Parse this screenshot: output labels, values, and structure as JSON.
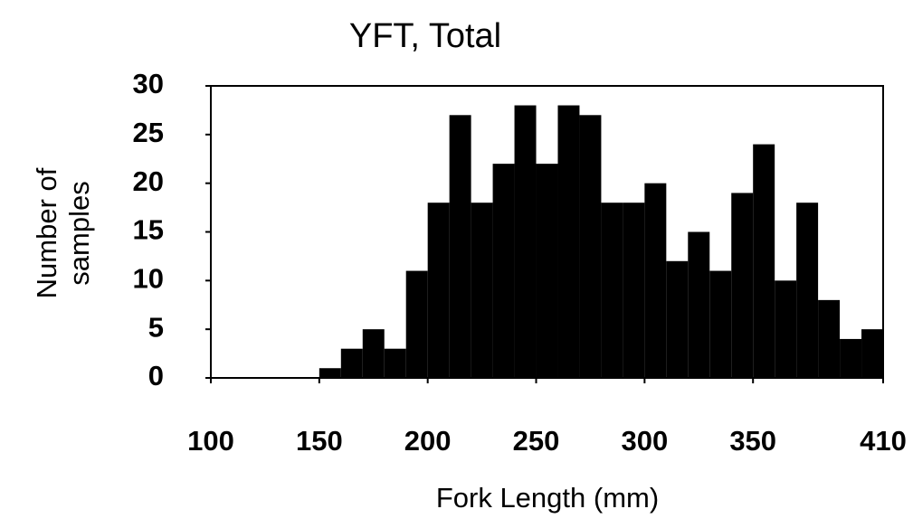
{
  "chart_data": {
    "type": "histogram",
    "title": "YFT, Total",
    "x_label": "Fork Length (mm)",
    "y_label": "Number of samples",
    "bins": [
      100,
      110,
      120,
      130,
      140,
      150,
      160,
      170,
      180,
      190,
      200,
      210,
      220,
      230,
      240,
      250,
      260,
      270,
      280,
      290,
      300,
      310,
      320,
      330,
      340,
      350,
      360,
      370,
      380,
      390,
      400,
      410
    ],
    "values": [
      0,
      0,
      0,
      0,
      0,
      1,
      3,
      5,
      3,
      11,
      18,
      27,
      18,
      22,
      28,
      22,
      28,
      27,
      18,
      18,
      20,
      12,
      15,
      11,
      19,
      24,
      10,
      18,
      8,
      4,
      5
    ],
    "color": "#000000",
    "xlim": [
      100,
      410
    ],
    "xticks": [
      100,
      150,
      200,
      250,
      300,
      350,
      410
    ],
    "ylim": [
      0,
      30
    ],
    "yticks": [
      0,
      5,
      10,
      15,
      20,
      25,
      30
    ],
    "grid": false
  }
}
